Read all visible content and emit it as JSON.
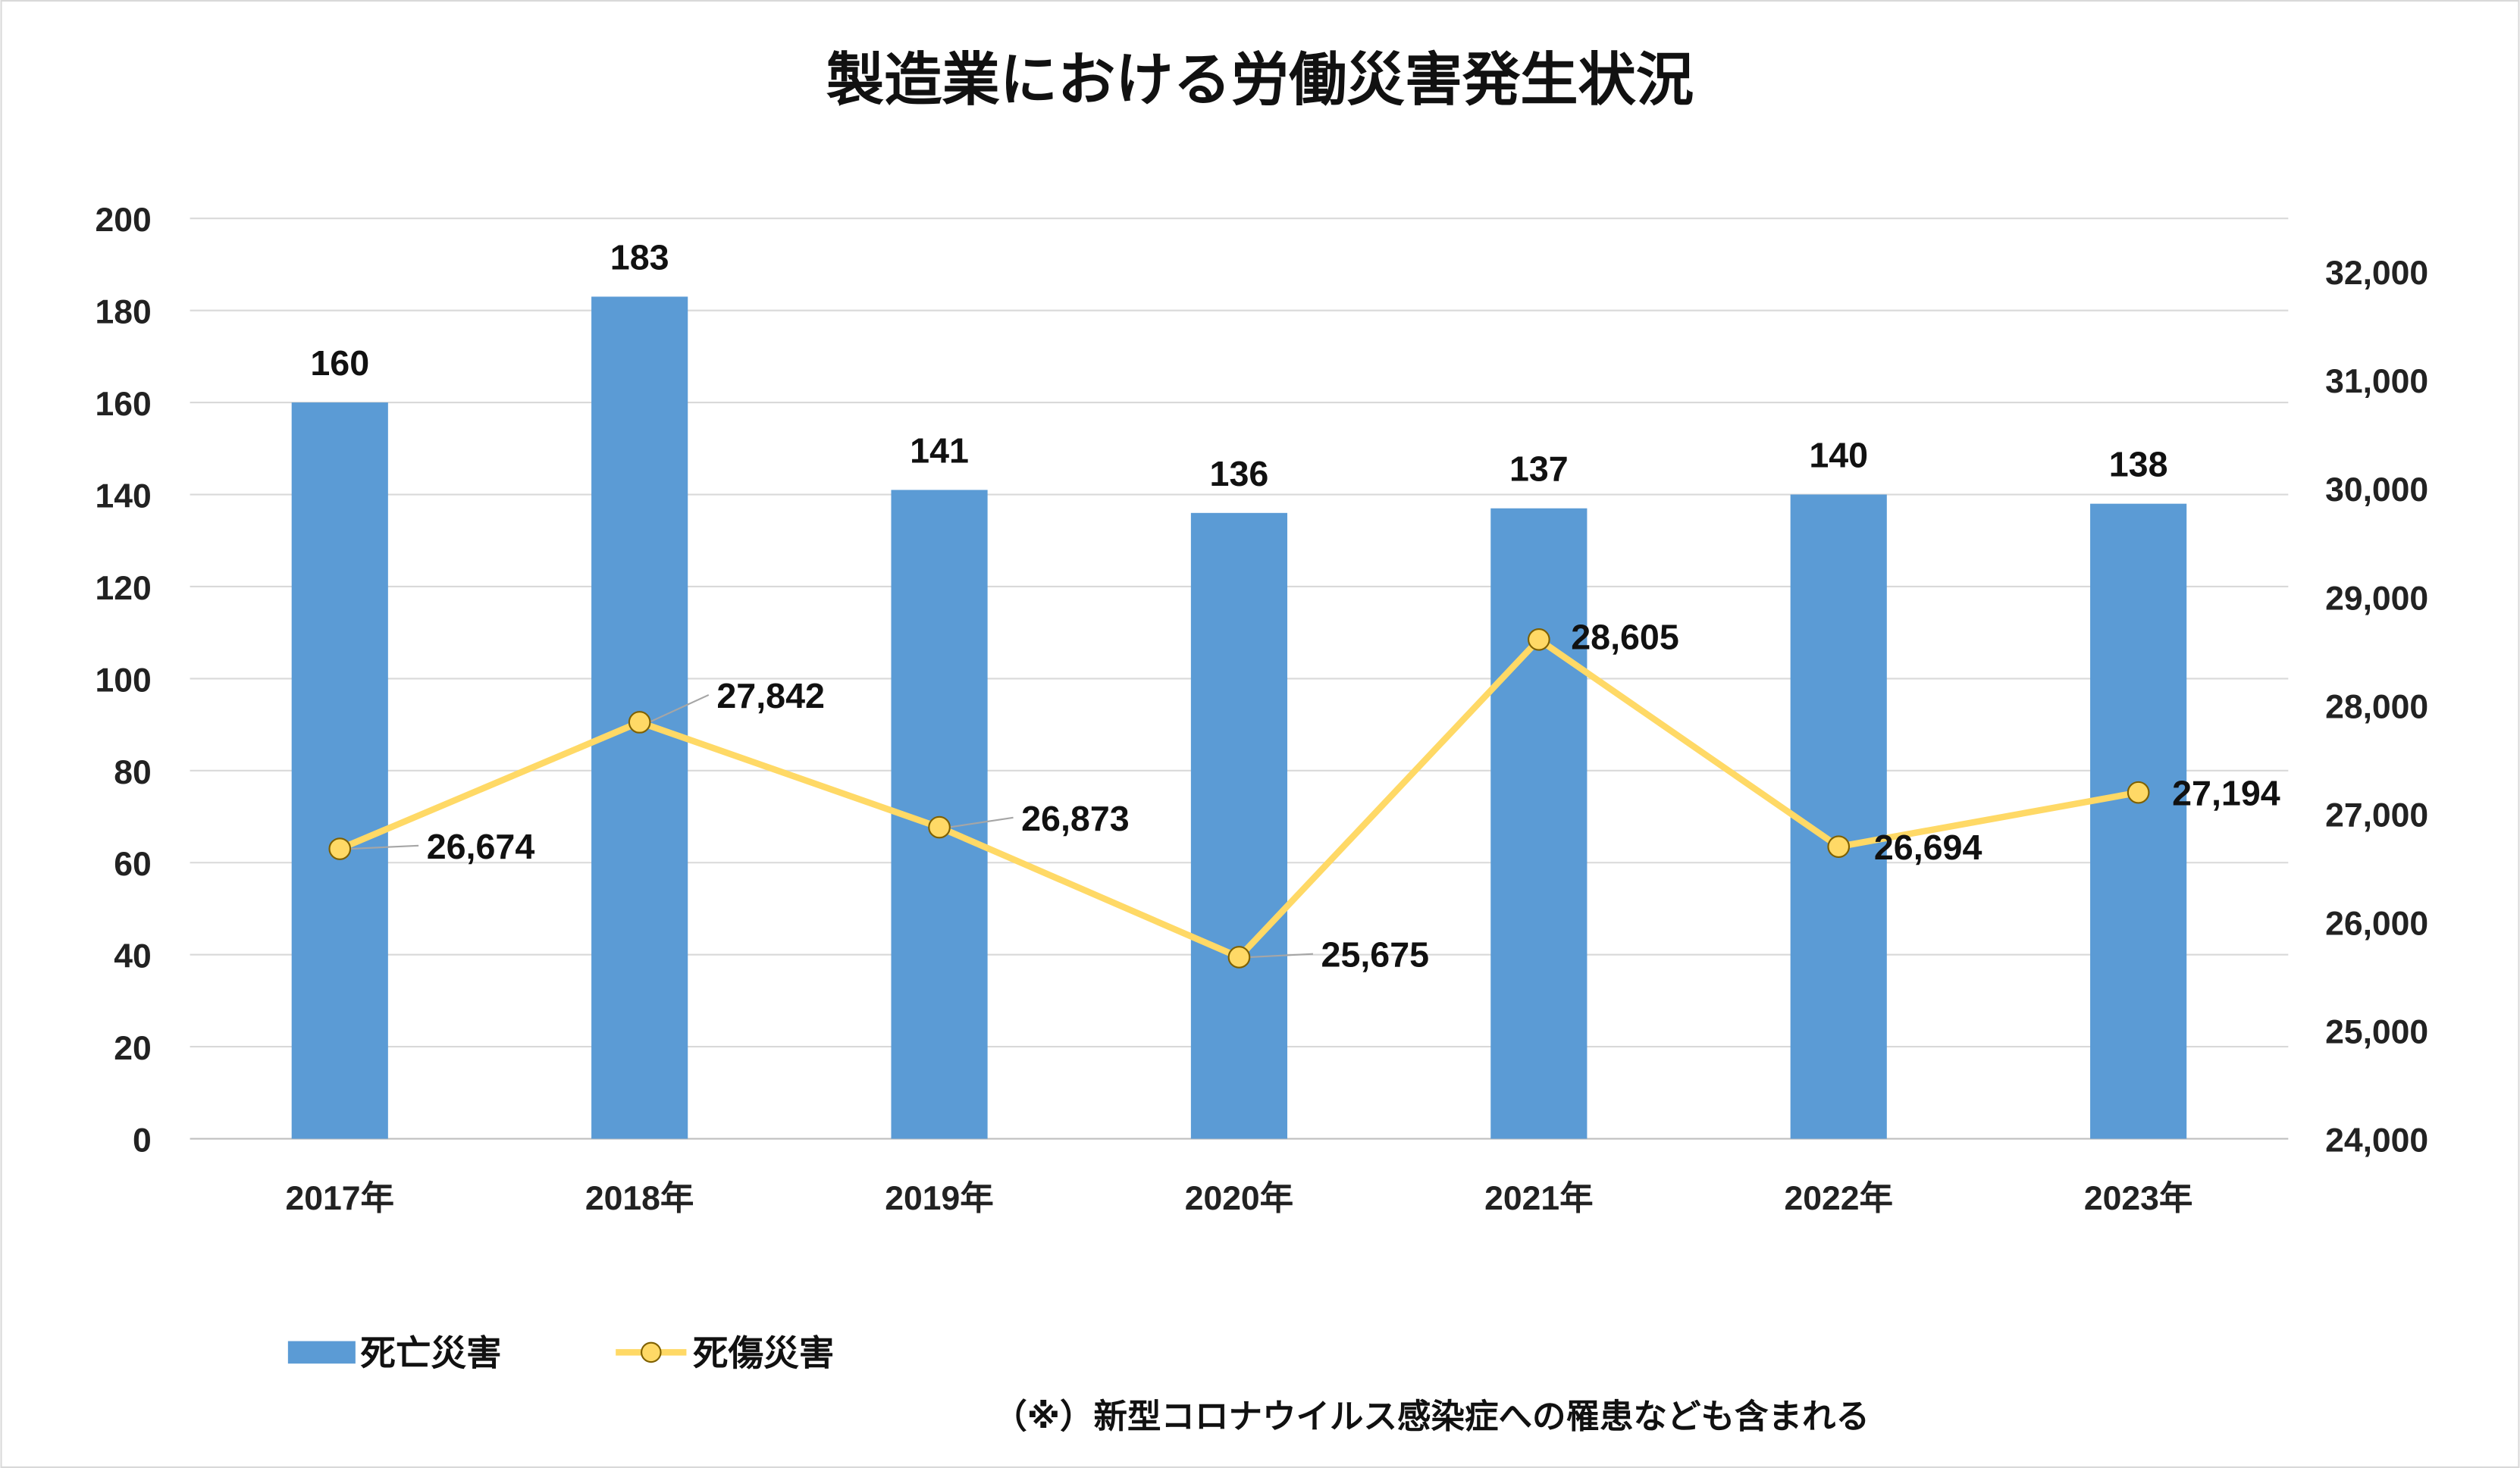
{
  "chart_data": {
    "type": "bar+line",
    "title": "製造業における労働災害発生状況",
    "categories": [
      "2017年",
      "2018年",
      "2019年",
      "2020年",
      "2021年",
      "2022年",
      "2023年"
    ],
    "series": [
      {
        "name": "死亡災害",
        "type": "bar",
        "axis": "left",
        "color": "#5B9BD5",
        "values": [
          160,
          183,
          141,
          136,
          137,
          140,
          138
        ],
        "labels": [
          "160",
          "183",
          "141",
          "136",
          "137",
          "140",
          "138"
        ]
      },
      {
        "name": "死傷災害",
        "type": "line",
        "axis": "right",
        "color": "#FFD966",
        "values": [
          26674,
          27842,
          26873,
          25675,
          28605,
          26694,
          27194
        ],
        "labels": [
          "26,674",
          "27,842",
          "26,873",
          "25,675",
          "28,605",
          "26,694",
          "27,194"
        ]
      }
    ],
    "left_axis": {
      "ylim": [
        0,
        200
      ],
      "ticks": [
        "0",
        "20",
        "40",
        "60",
        "80",
        "100",
        "120",
        "140",
        "160",
        "180",
        "200"
      ]
    },
    "right_axis": {
      "ylim": [
        24000,
        32000
      ],
      "ticks": [
        "24,000",
        "25,000",
        "26,000",
        "27,000",
        "28,000",
        "29,000",
        "30,000",
        "31,000",
        "32,000"
      ]
    },
    "grid": true,
    "legend": "bottom-left",
    "note": "（※）新型コロナウイルス感染症への罹患なども含まれる"
  }
}
